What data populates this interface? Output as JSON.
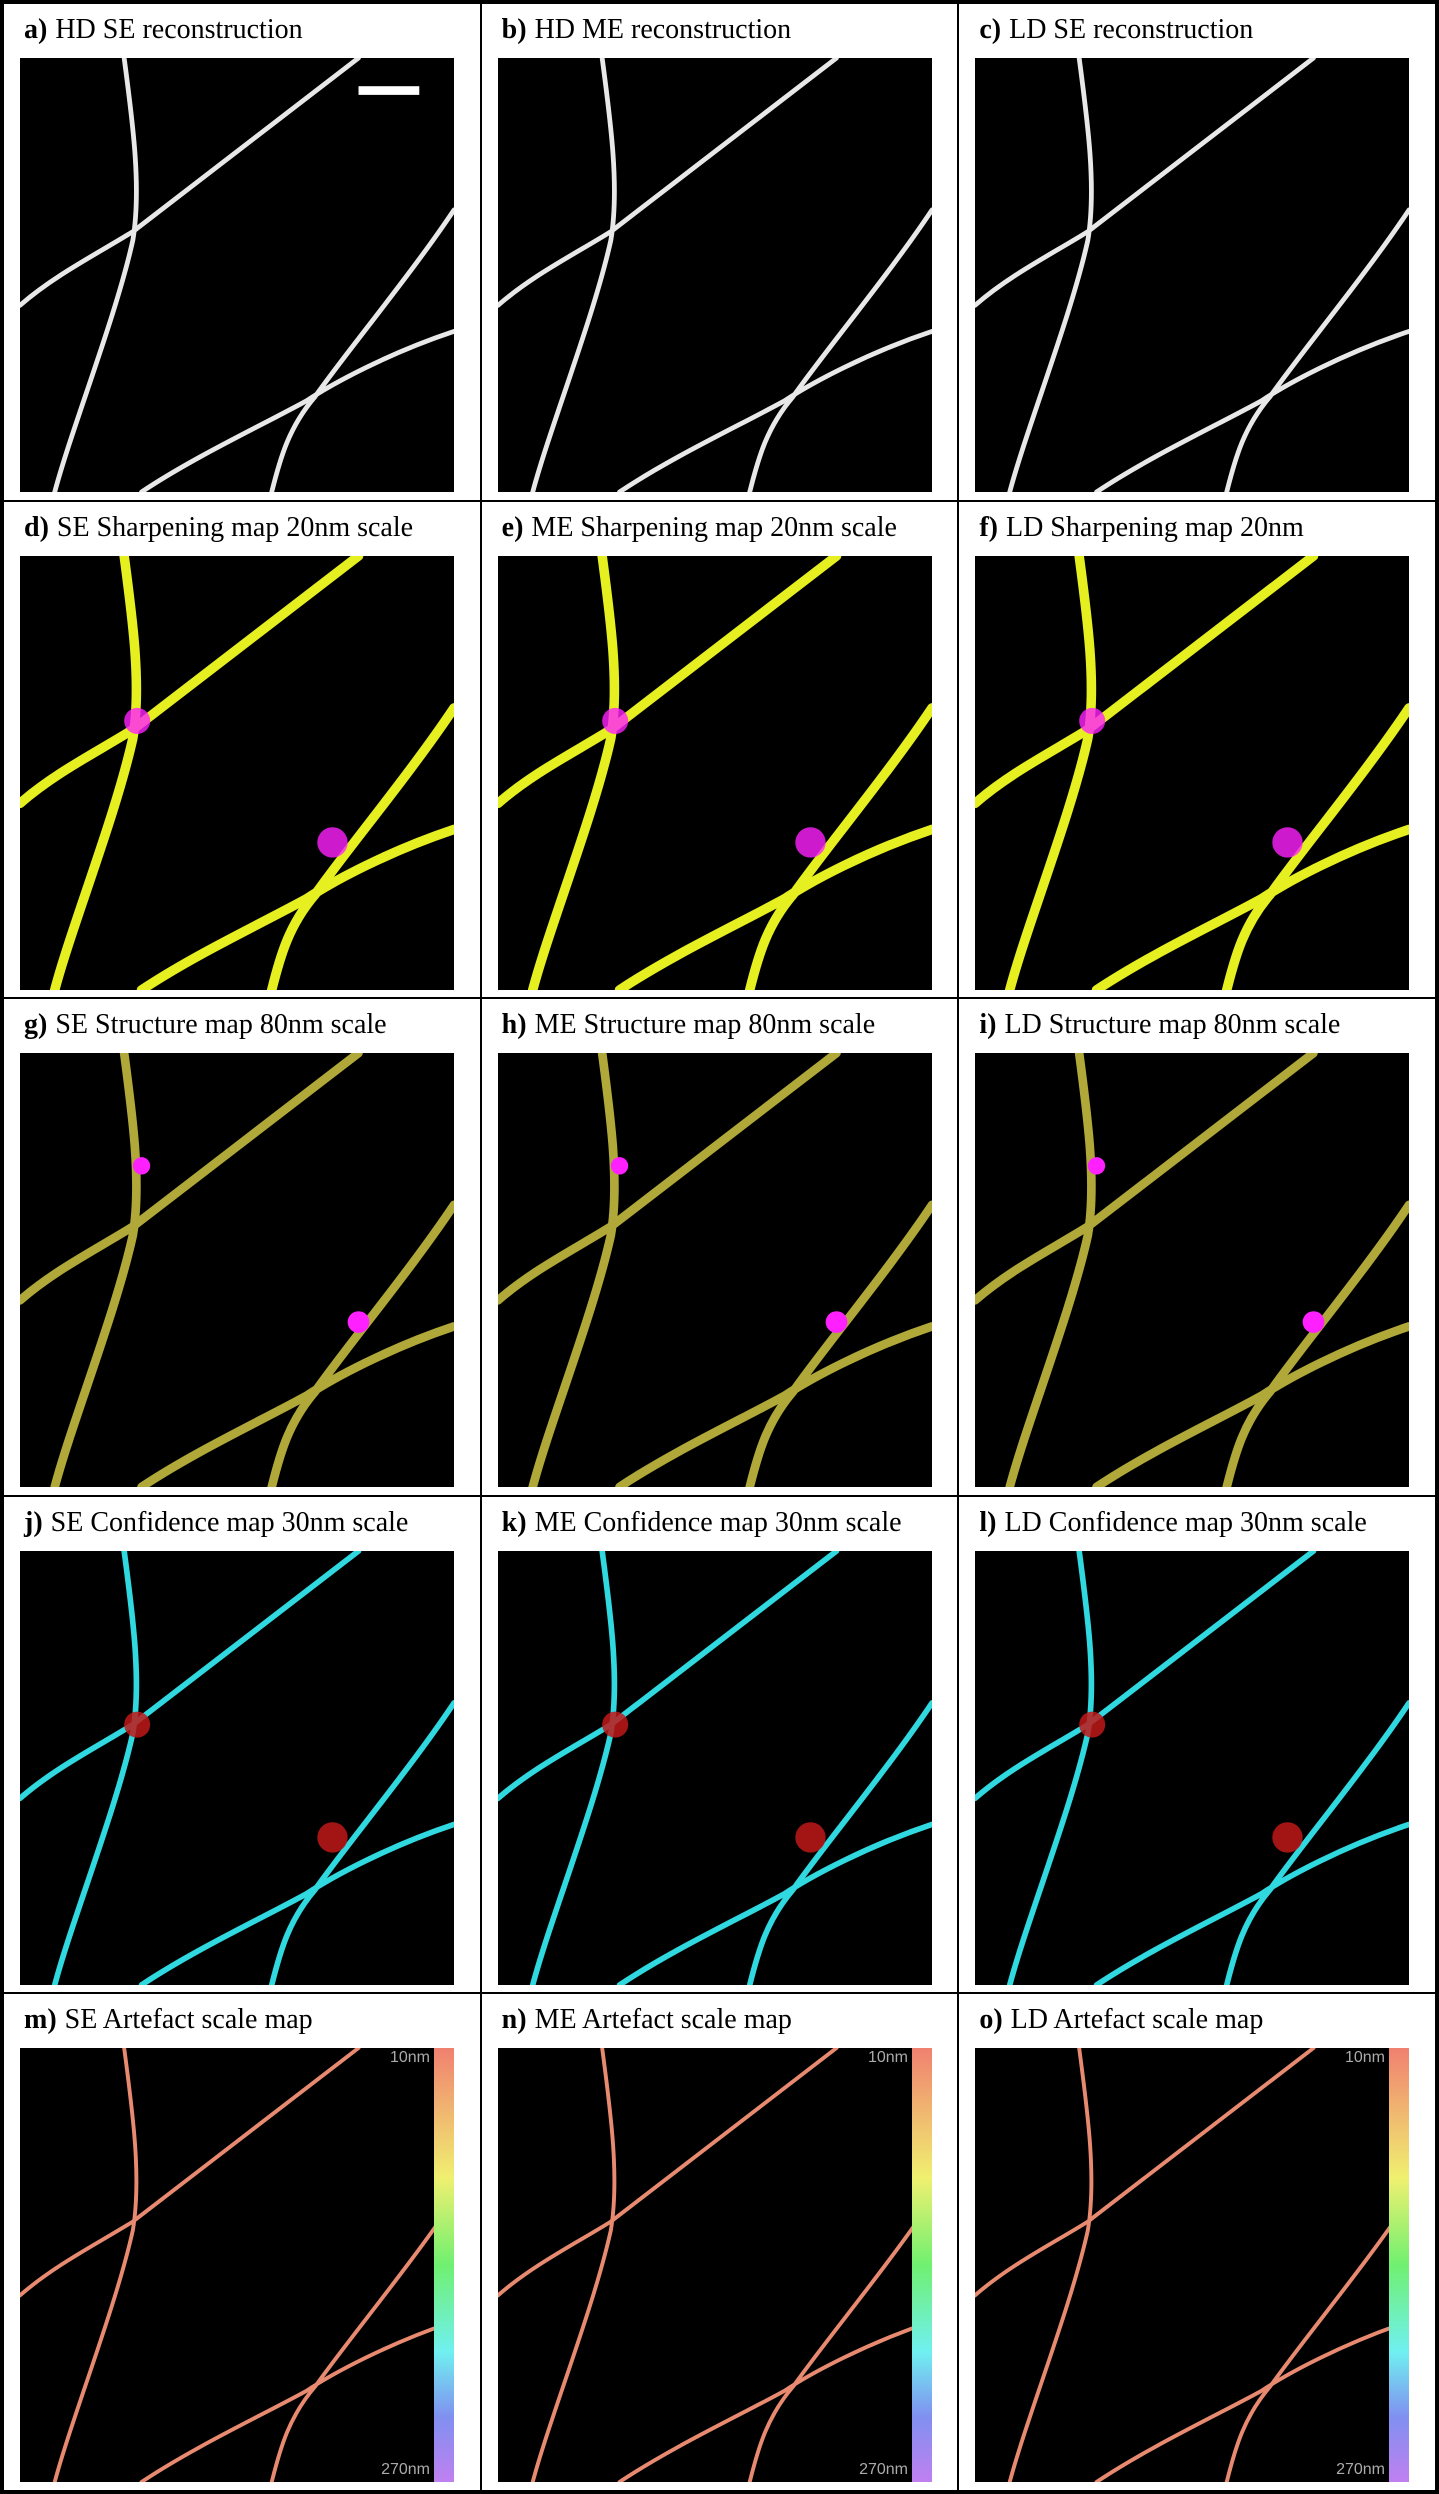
{
  "panels": [
    {
      "letter": "a)",
      "title": "HD SE reconstruction"
    },
    {
      "letter": "b)",
      "title": "HD ME reconstruction"
    },
    {
      "letter": "c)",
      "title": "LD SE reconstruction"
    },
    {
      "letter": "d)",
      "title": "SE Sharpening map 20nm scale"
    },
    {
      "letter": "e)",
      "title": "ME Sharpening map 20nm scale"
    },
    {
      "letter": "f)",
      "title": "LD Sharpening map 20nm"
    },
    {
      "letter": "g)",
      "title": "SE Structure map 80nm scale"
    },
    {
      "letter": "h)",
      "title": "ME Structure map 80nm scale"
    },
    {
      "letter": "i)",
      "title": "LD Structure map 80nm scale"
    },
    {
      "letter": "j)",
      "title": "SE Confidence map 30nm scale"
    },
    {
      "letter": "k)",
      "title": "ME Confidence map 30nm scale"
    },
    {
      "letter": "l)",
      "title": "LD Confidence map 30nm scale"
    },
    {
      "letter": "m)",
      "title": "SE Artefact scale map",
      "scale_top": "10nm",
      "scale_bottom": "270nm"
    },
    {
      "letter": "n)",
      "title": "ME Artefact scale map",
      "scale_top": "10nm",
      "scale_bottom": "270nm"
    },
    {
      "letter": "o)",
      "title": "LD Artefact scale map",
      "scale_top": "10nm",
      "scale_bottom": "270nm"
    }
  ]
}
